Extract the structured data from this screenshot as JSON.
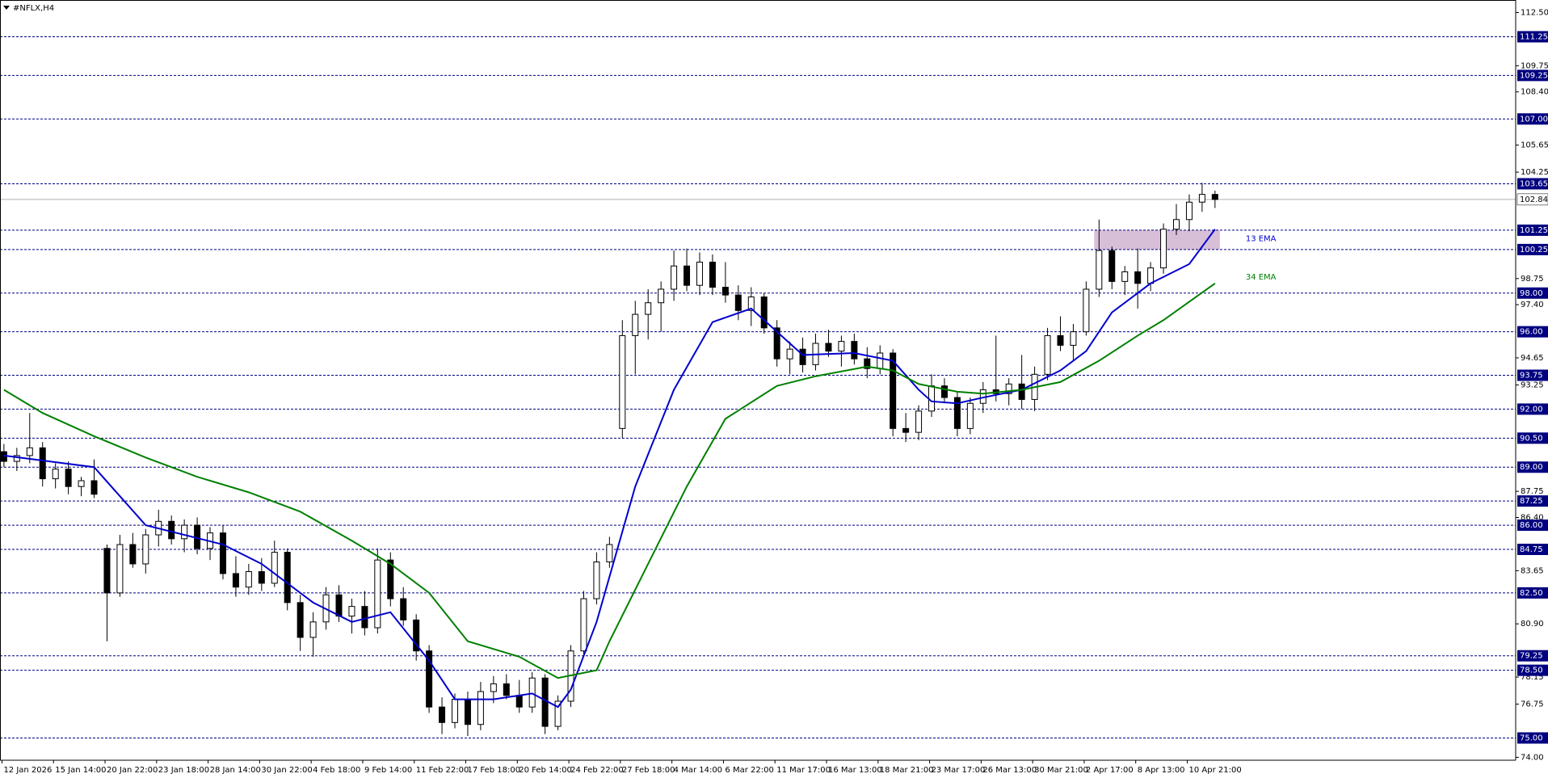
{
  "chart_data": {
    "type": "candlestick",
    "title": "#NFLX,H4",
    "categories": [
      "12 Jan 2026",
      null,
      null,
      null,
      "15 Jan 14:00",
      null,
      null,
      null,
      "20 Jan 22:00",
      null,
      null,
      null,
      "23 Jan 18:00",
      null,
      null,
      null,
      "28 Jan 14:00",
      null,
      null,
      null,
      "30 Jan 22:00",
      null,
      null,
      null,
      "4 Feb 18:00",
      null,
      null,
      null,
      "9 Feb 14:00",
      null,
      null,
      null,
      "11 Feb 22:00",
      null,
      null,
      null,
      "17 Feb 18:00",
      null,
      null,
      null,
      "20 Feb 14:00",
      null,
      null,
      null,
      "24 Feb 22:00",
      null,
      null,
      null,
      "27 Feb 18:00",
      null,
      null,
      null,
      "4 Mar 14:00",
      null,
      null,
      null,
      "6 Mar 22:00",
      null,
      null,
      null,
      "11 Mar 17:00",
      null,
      null,
      null,
      "16 Mar 13:00",
      null,
      null,
      null,
      "18 Mar 21:00",
      null,
      null,
      null,
      "23 Mar 17:00",
      null,
      null,
      null,
      "26 Mar 13:00",
      null,
      null,
      null,
      "30 Mar 21:00",
      null,
      null,
      null,
      "2 Apr 17:00",
      null,
      null,
      null,
      "8 Apr 13:00",
      null,
      null,
      null,
      "10 Apr 21:00",
      null,
      null
    ],
    "ohlc": [
      [
        89.8,
        90.2,
        89.0,
        89.3
      ],
      [
        89.3,
        90.0,
        88.8,
        89.6
      ],
      [
        89.6,
        91.8,
        89.2,
        90.0
      ],
      [
        90.0,
        90.3,
        88.0,
        88.4
      ],
      [
        88.4,
        89.2,
        87.9,
        88.9
      ],
      [
        88.9,
        89.3,
        87.6,
        88.0
      ],
      [
        88.0,
        88.5,
        87.5,
        88.3
      ],
      [
        88.3,
        89.4,
        87.4,
        87.6
      ],
      [
        84.8,
        85.0,
        80.0,
        82.5
      ],
      [
        82.5,
        85.5,
        82.3,
        85.0
      ],
      [
        85.0,
        85.6,
        83.8,
        84.0
      ],
      [
        84.0,
        85.8,
        83.5,
        85.5
      ],
      [
        85.5,
        86.8,
        84.9,
        86.2
      ],
      [
        86.2,
        86.5,
        85.0,
        85.3
      ],
      [
        85.3,
        86.3,
        84.6,
        86.0
      ],
      [
        86.0,
        86.4,
        84.5,
        84.8
      ],
      [
        84.8,
        85.9,
        84.2,
        85.6
      ],
      [
        85.6,
        86.0,
        83.2,
        83.5
      ],
      [
        83.5,
        84.4,
        82.3,
        82.8
      ],
      [
        82.8,
        84.0,
        82.4,
        83.6
      ],
      [
        83.6,
        84.3,
        82.6,
        83.0
      ],
      [
        83.0,
        85.2,
        82.8,
        84.6
      ],
      [
        84.6,
        84.8,
        81.6,
        82.0
      ],
      [
        82.0,
        82.4,
        79.5,
        80.2
      ],
      [
        80.2,
        81.5,
        79.2,
        81.0
      ],
      [
        81.0,
        82.8,
        80.6,
        82.4
      ],
      [
        82.4,
        82.9,
        81.0,
        81.3
      ],
      [
        81.3,
        82.2,
        80.4,
        81.8
      ],
      [
        81.8,
        82.6,
        80.3,
        80.7
      ],
      [
        80.7,
        84.8,
        80.4,
        84.2
      ],
      [
        84.2,
        84.6,
        81.8,
        82.2
      ],
      [
        82.2,
        82.8,
        80.8,
        81.1
      ],
      [
        81.1,
        81.4,
        79.0,
        79.5
      ],
      [
        79.5,
        79.8,
        76.3,
        76.6
      ],
      [
        76.6,
        77.1,
        75.2,
        75.8
      ],
      [
        75.8,
        77.3,
        75.5,
        77.0
      ],
      [
        77.0,
        77.4,
        75.1,
        75.7
      ],
      [
        75.7,
        77.9,
        75.4,
        77.4
      ],
      [
        77.4,
        78.2,
        76.8,
        77.8
      ],
      [
        77.8,
        78.3,
        77.0,
        77.2
      ],
      [
        77.2,
        78.0,
        76.3,
        76.6
      ],
      [
        76.6,
        78.4,
        76.3,
        78.1
      ],
      [
        78.1,
        78.3,
        75.2,
        75.6
      ],
      [
        75.6,
        77.2,
        75.4,
        76.9
      ],
      [
        76.9,
        79.8,
        76.6,
        79.5
      ],
      [
        79.5,
        82.6,
        79.2,
        82.2
      ],
      [
        82.2,
        84.6,
        81.9,
        84.1
      ],
      [
        84.1,
        85.4,
        83.8,
        85.0
      ],
      [
        91.0,
        96.6,
        90.5,
        95.8
      ],
      [
        95.8,
        97.6,
        93.8,
        96.9
      ],
      [
        96.9,
        98.2,
        95.6,
        97.5
      ],
      [
        97.5,
        98.6,
        96.0,
        98.2
      ],
      [
        98.2,
        100.2,
        97.6,
        99.4
      ],
      [
        99.4,
        100.3,
        98.1,
        98.4
      ],
      [
        98.4,
        100.1,
        97.9,
        99.6
      ],
      [
        99.6,
        100.0,
        97.9,
        98.3
      ],
      [
        98.3,
        99.6,
        97.5,
        97.9
      ],
      [
        97.9,
        98.4,
        96.6,
        97.1
      ],
      [
        97.1,
        98.3,
        96.3,
        97.8
      ],
      [
        97.8,
        98.0,
        95.9,
        96.2
      ],
      [
        96.2,
        96.6,
        94.2,
        94.6
      ],
      [
        94.6,
        95.5,
        93.8,
        95.1
      ],
      [
        95.1,
        95.7,
        93.9,
        94.3
      ],
      [
        94.3,
        95.9,
        94.0,
        95.4
      ],
      [
        95.4,
        96.1,
        94.7,
        95.0
      ],
      [
        95.0,
        95.8,
        94.2,
        95.5
      ],
      [
        95.5,
        95.9,
        94.3,
        94.6
      ],
      [
        94.6,
        95.2,
        93.6,
        94.1
      ],
      [
        94.1,
        95.3,
        93.8,
        94.9
      ],
      [
        94.9,
        95.1,
        90.6,
        91.0
      ],
      [
        91.0,
        91.8,
        90.3,
        90.8
      ],
      [
        90.8,
        92.2,
        90.4,
        91.9
      ],
      [
        91.9,
        93.8,
        91.6,
        93.2
      ],
      [
        93.2,
        93.6,
        92.3,
        92.6
      ],
      [
        92.6,
        92.9,
        90.6,
        91.0
      ],
      [
        91.0,
        92.6,
        90.7,
        92.3
      ],
      [
        92.3,
        93.4,
        91.8,
        93.0
      ],
      [
        93.0,
        95.8,
        92.4,
        92.8
      ],
      [
        92.8,
        93.6,
        92.2,
        93.3
      ],
      [
        93.3,
        94.8,
        92.0,
        92.5
      ],
      [
        92.5,
        94.2,
        91.9,
        93.8
      ],
      [
        93.8,
        96.2,
        93.5,
        95.8
      ],
      [
        95.8,
        96.8,
        95.0,
        95.3
      ],
      [
        95.3,
        96.4,
        94.5,
        96.0
      ],
      [
        96.0,
        98.6,
        95.8,
        98.2
      ],
      [
        98.2,
        101.8,
        97.8,
        100.2
      ],
      [
        100.2,
        100.4,
        98.2,
        98.6
      ],
      [
        98.6,
        99.4,
        97.9,
        99.1
      ],
      [
        99.1,
        100.3,
        97.2,
        98.5
      ],
      [
        98.5,
        99.6,
        98.1,
        99.3
      ],
      [
        99.3,
        101.6,
        99.0,
        101.3
      ],
      [
        101.3,
        102.6,
        101.0,
        101.8
      ],
      [
        101.8,
        103.1,
        101.2,
        102.7
      ],
      [
        102.7,
        103.7,
        102.2,
        103.1
      ],
      [
        103.1,
        103.3,
        102.4,
        102.84
      ]
    ],
    "series": [
      {
        "name": "13 EMA",
        "color": "#0000cd",
        "x": [
          0,
          7,
          11,
          17,
          20,
          24,
          27,
          30,
          33,
          35,
          38,
          41,
          43,
          44,
          46,
          49,
          52,
          55,
          58,
          60,
          62,
          66,
          69,
          71,
          72,
          74,
          76,
          79,
          82,
          84,
          86,
          89,
          92,
          94
        ],
        "values": [
          89.6,
          89.0,
          86.0,
          85.0,
          84.0,
          82.0,
          81.0,
          81.5,
          79.0,
          77.0,
          77.0,
          77.3,
          76.6,
          77.5,
          81.0,
          88.0,
          93.0,
          96.5,
          97.2,
          96.0,
          94.8,
          94.9,
          94.5,
          93.0,
          92.4,
          92.3,
          92.6,
          93.0,
          94.0,
          95.0,
          97.0,
          98.5,
          99.5,
          101.3
        ]
      },
      {
        "name": "34 EMA",
        "color": "#008000",
        "x": [
          0,
          3,
          7,
          11,
          15,
          19,
          23,
          27,
          30,
          33,
          36,
          40,
          43,
          46,
          47,
          50,
          53,
          56,
          60,
          63,
          67,
          69,
          71,
          74,
          76,
          79,
          82,
          85,
          88,
          90,
          94
        ],
        "values": [
          93.0,
          91.8,
          90.6,
          89.5,
          88.5,
          87.7,
          86.7,
          85.2,
          84.0,
          82.5,
          80.0,
          79.2,
          78.1,
          78.5,
          80.0,
          84.0,
          88.0,
          91.5,
          93.2,
          93.7,
          94.2,
          94.0,
          93.3,
          92.9,
          92.8,
          93.0,
          93.4,
          94.5,
          95.8,
          96.6,
          98.5
        ]
      }
    ],
    "ylim": [
      73.85,
      113.15
    ],
    "yticks": [
      {
        "value": 112.5,
        "label": "112.50"
      },
      109.75,
      {
        "value": 108.4,
        "label": "108.40"
      },
      105.65,
      104.25,
      98.75,
      {
        "value": 97.4,
        "label": "97.40"
      },
      94.65,
      93.25,
      87.75,
      {
        "value": 86.4,
        "label": "86.40"
      },
      83.65,
      {
        "value": 80.9,
        "label": "80.90"
      },
      78.15,
      76.75,
      {
        "value": 74,
        "label": "74.00"
      }
    ],
    "levels": [
      111.25,
      109.25,
      {
        "value": 107,
        "label": "107.00"
      },
      103.65,
      101.25,
      100.25,
      {
        "value": 98,
        "label": "98.00"
      },
      {
        "value": 96,
        "label": "96.00"
      },
      93.75,
      {
        "value": 92,
        "label": "92.00"
      },
      {
        "value": 90.5,
        "label": "90.50"
      },
      {
        "value": 89,
        "label": "89.00"
      },
      87.25,
      {
        "value": 86,
        "label": "86.00"
      },
      84.75,
      {
        "value": 82.5,
        "label": "82.50"
      },
      79.25,
      {
        "value": 78.5,
        "label": "78.50"
      },
      {
        "value": 75,
        "label": "75.00"
      }
    ],
    "level_color": "#000080",
    "current_price": 102.84,
    "zone": {
      "from": 100.25,
      "to": 101.25,
      "color": "#d8bfd8"
    },
    "bull_color": "#ffffff",
    "bear_color": "#000000"
  }
}
